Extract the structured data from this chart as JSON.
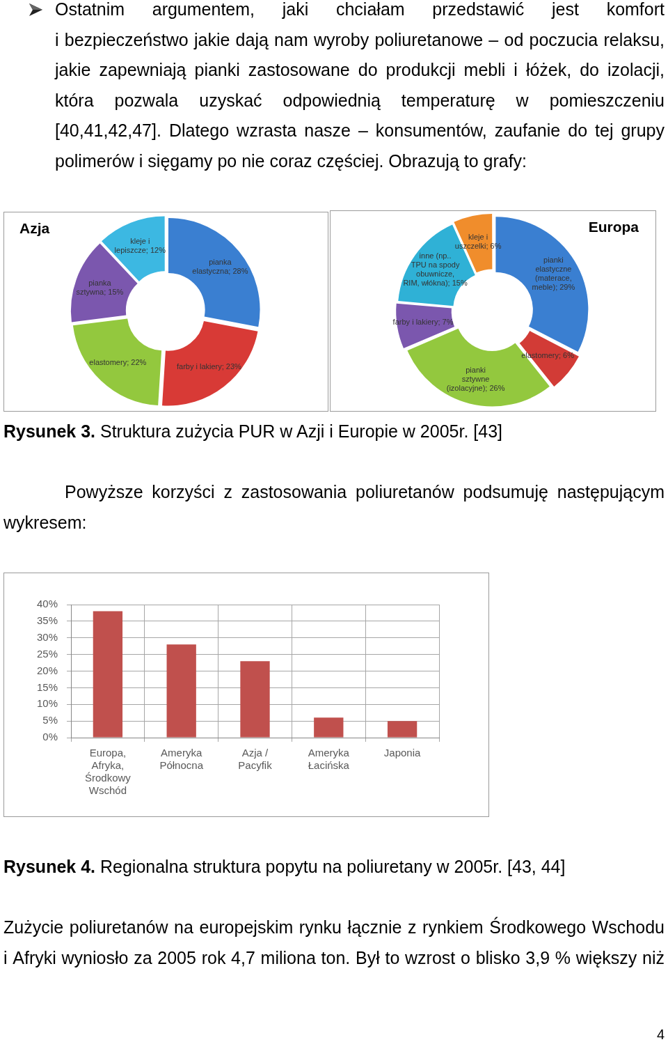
{
  "chart_data": [
    {
      "type": "donut",
      "title": "Azja",
      "categories": [
        "pianka elastyczna",
        "farby i lakiery",
        "elastomery",
        "pianka sztywna",
        "kleje i lepiszcze"
      ],
      "values": [
        28,
        23,
        22,
        15,
        12
      ],
      "colors": [
        "#3a7fd1",
        "#d83a36",
        "#93c83e",
        "#7b57ae",
        "#3cb8e2"
      ],
      "value_labels": [
        "28%",
        "23%",
        "22%",
        "15%",
        "12%"
      ],
      "annotations": [
        "Ostatnim argumentem, jaki chciałam przedstawić jest komfort i bezpieczeństwo jakie dają nam wyroby poliuretanowe – od poczucia relaksu, jakie zapewniają pianki zastosowane do produkcji mebli i łóżek, do izolacji, która pozwala uzyskać odpowiednią temperaturę w pomieszczeniu [40,41,42,47]. Dlatego wzrasta nasze – konsumentów, zaufanie do tej grupy polimerów i sięgamy po nie coraz częściej. Obrazują to grafy:"
      ]
    },
    {
      "type": "donut",
      "title": "Europa",
      "categories": [
        "pianki elastyczne (materace, meble)",
        "elastomery",
        "pianki sztywne (izolacyjne)",
        "farby i lakiery",
        "inne (np.. TPU na spody obuwnicze, RIM, włókna)",
        "kleje i uszczelki"
      ],
      "values": [
        29,
        6,
        26,
        7,
        15,
        6
      ],
      "colors": [
        "#3a7fd1",
        "#d23b36",
        "#93c83e",
        "#7b57ae",
        "#2fb1d6",
        "#f08d2c"
      ],
      "value_labels": [
        "29%",
        "6%",
        "26%",
        "7%",
        "15%",
        "6%"
      ],
      "annotations": [
        "Rysunek 3. Struktura zużycia PUR w Azji i Europie w 2005r. [43]",
        "Powyższe korzyści z zastosowania poliuretanów podsumuję następującym wykresem:"
      ]
    },
    {
      "type": "bar",
      "categories": [
        "Europa, Afryka, Środkowy Wschód",
        "Ameryka Północna",
        "Azja / Pacyfik",
        "Ameryka Łacińska",
        "Japonia"
      ],
      "values": [
        38,
        28,
        23,
        6,
        5
      ],
      "color": "#c0504d",
      "ylim": [
        0,
        40
      ],
      "yticks": [
        {
          "value": 0,
          "label": "0%"
        },
        {
          "value": 5,
          "label": "5%"
        },
        {
          "value": 10,
          "label": "10%"
        },
        {
          "value": 15,
          "label": "15%"
        },
        {
          "value": 20,
          "label": "20%"
        },
        {
          "value": 25,
          "label": "25%"
        },
        {
          "value": 30,
          "label": "30%"
        },
        {
          "value": 35,
          "label": "35%"
        },
        {
          "value": 40,
          "label": "40%"
        }
      ],
      "grid": true,
      "annotations": [
        "Rysunek 4. Regionalna struktura popytu na poliuretany w 2005r. [43, 44]",
        "Zużycie poliuretanów na europejskim rynku łącznie z rynkiem Środkowego Wschodu i Afryki wyniosło za 2005 rok 4,7 miliona ton. Był to wzrost o blisko 3,9 % większy niż",
        "4"
      ]
    }
  ]
}
